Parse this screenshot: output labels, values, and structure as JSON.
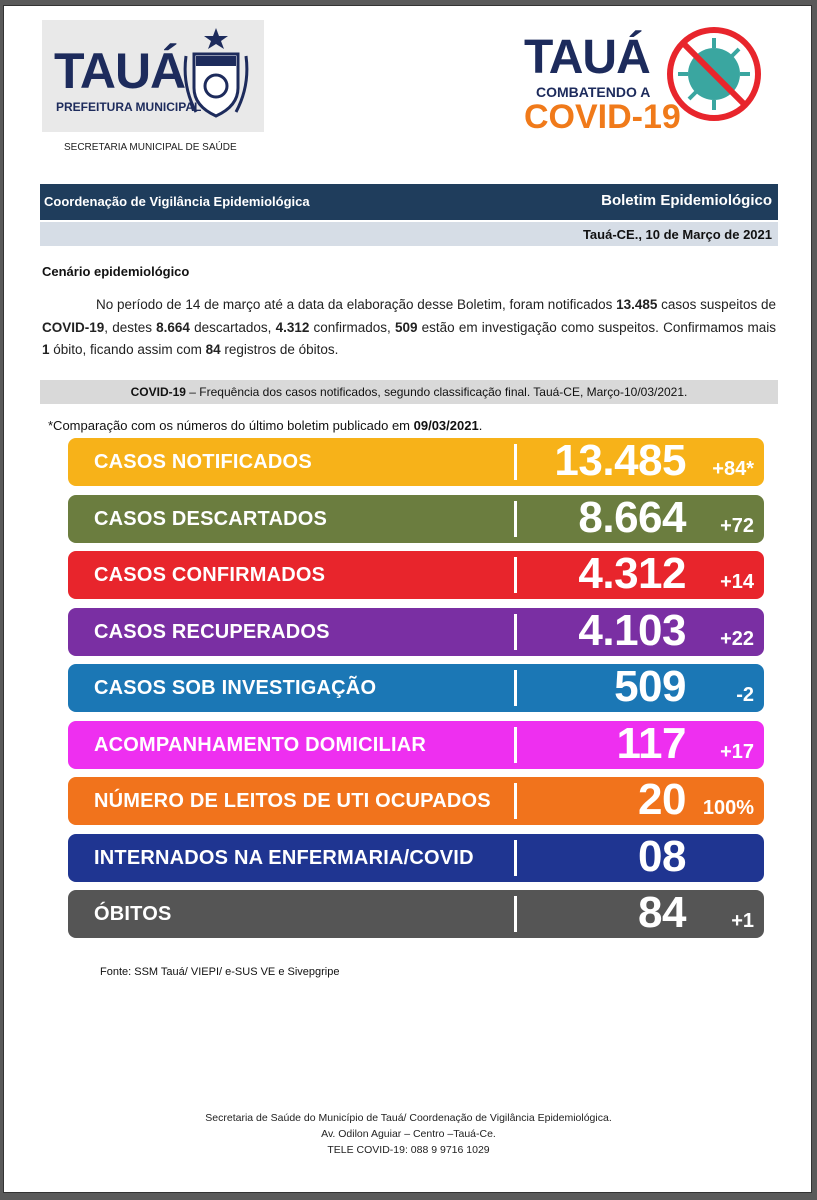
{
  "header": {
    "logo_left_name": "TAUÁ",
    "logo_left_sub": "PREFEITURA MUNICIPAL",
    "secretaria": "SECRETARIA MUNICIPAL DE SAÚDE",
    "logo_right_title": "TAUÁ",
    "logo_right_line1": "COMBATENDO A",
    "logo_right_line2": "COVID-19"
  },
  "band": {
    "left": "Coordenação de Vigilância Epidemiológica",
    "right": "Boletim Epidemiológico",
    "date": "Tauá-CE., 10 de Março de 2021"
  },
  "scenario": {
    "title": "Cenário epidemiológico",
    "p1": "No período de 14 de março até a data da elaboração desse Boletim, foram notificados ",
    "v1": "13.485",
    "p2": " casos suspeitos de ",
    "v2": "COVID-19",
    "p3": ", destes ",
    "v3": "8.664",
    "p4": " descartados, ",
    "v4": "4.312",
    "p5": " confirmados, ",
    "v5": "509",
    "p6": " estão em investigação como suspeitos. Confirmamos mais ",
    "v6": "1",
    "p7": " óbito, ficando assim com ",
    "v7": "84",
    "p8": " registros de óbitos."
  },
  "freq": {
    "bold": "COVID-19",
    "text": " – Frequência dos casos notificados, segundo classificação final. Tauá-CE, Março-10/03/2021."
  },
  "comparison": {
    "text": "*Comparação com os números do último boletim publicado em ",
    "date": "09/03/2021",
    "end": "."
  },
  "stats": [
    {
      "label": "CASOS NOTIFICADOS",
      "value": "13.485",
      "delta": "+84*",
      "color": "#f7b219"
    },
    {
      "label": "CASOS DESCARTADOS",
      "value": "8.664",
      "delta": "+72",
      "color": "#6b7d3f"
    },
    {
      "label": "CASOS CONFIRMADOS",
      "value": "4.312",
      "delta": "+14",
      "color": "#e8252c"
    },
    {
      "label": "CASOS RECUPERADOS",
      "value": "4.103",
      "delta": "+22",
      "color": "#7a2fa3"
    },
    {
      "label": "CASOS SOB INVESTIGAÇÃO",
      "value": "509",
      "delta": "-2",
      "color": "#1b77b5"
    },
    {
      "label": "ACOMPANHAMENTO DOMICILIAR",
      "value": "117",
      "delta": "+17",
      "color": "#ee2ff0"
    },
    {
      "label": "NÚMERO DE LEITOS DE UTI OCUPADOS",
      "value": "20",
      "delta": "100%",
      "color": "#f1731c"
    },
    {
      "label": "INTERNADOS NA ENFERMARIA/COVID",
      "value": "08",
      "delta": "",
      "color": "#1f3591"
    },
    {
      "label": "ÓBITOS",
      "value": "84",
      "delta": "+1",
      "color": "#555555"
    }
  ],
  "source": "Fonte: SSM Tauá/ VIEPI/ e-SUS VE e Sivepgripe",
  "footer": {
    "line1": "Secretaria de Saúde do Município de Tauá/ Coordenação de Vigilância Epidemiológica.",
    "line2": "Av. Odilon Aguiar – Centro –Tauá-Ce.",
    "line3": "TELE COVID-19: 088 9 9716 1029"
  }
}
